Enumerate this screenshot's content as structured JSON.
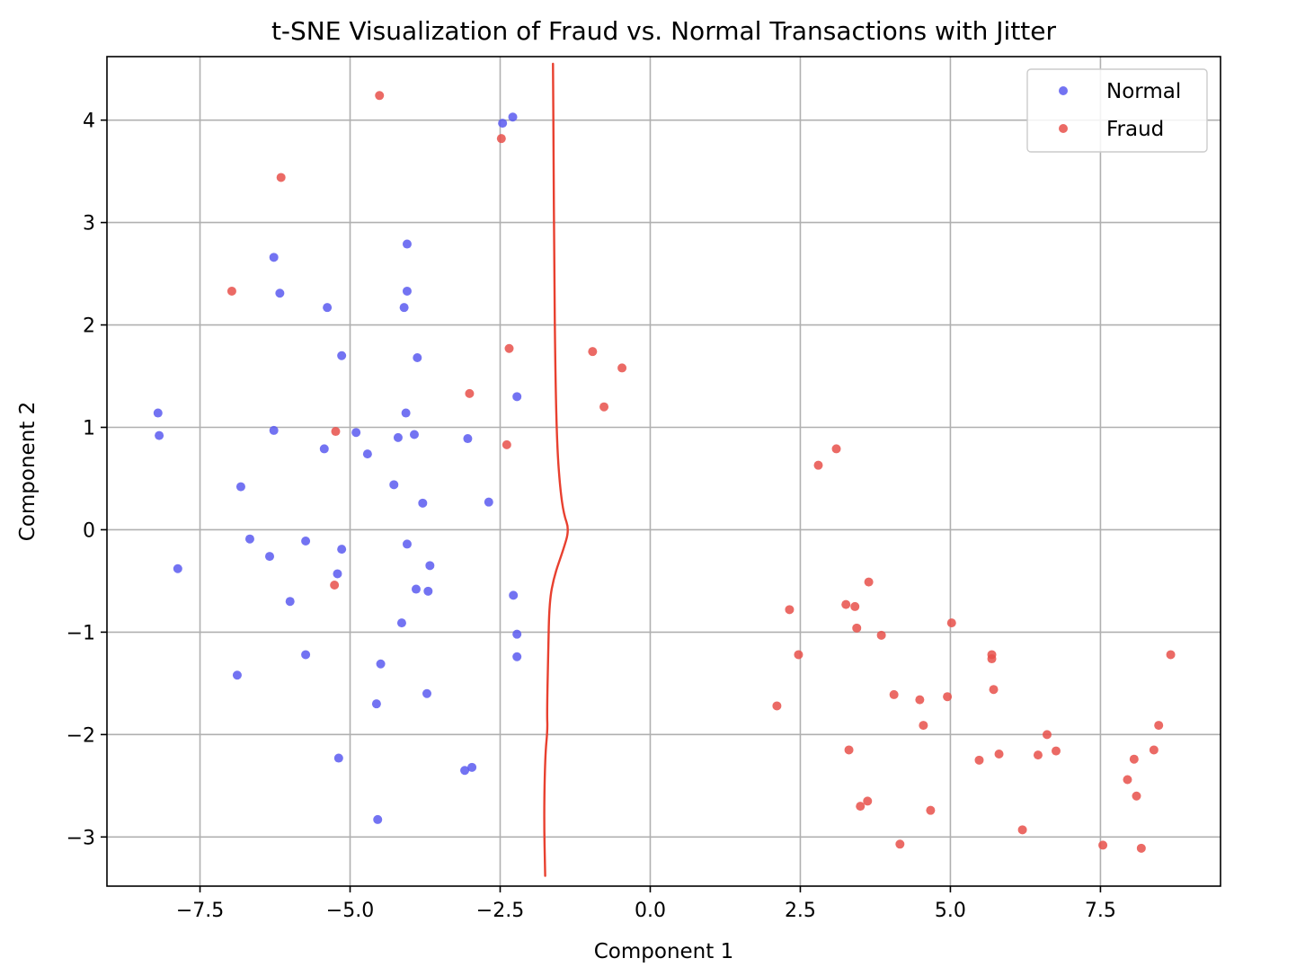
{
  "chart_data": {
    "type": "scatter",
    "title": "t-SNE Visualization of Fraud vs. Normal Transactions with Jitter",
    "xlabel": "Component 1",
    "ylabel": "Component 2",
    "xlim": [
      -9.05,
      9.5
    ],
    "ylim": [
      -3.48,
      4.62
    ],
    "xticks": [
      -7.5,
      -5.0,
      -2.5,
      0.0,
      2.5,
      5.0,
      7.5
    ],
    "xtick_labels": [
      "−7.5",
      "−5.0",
      "−2.5",
      "0.0",
      "2.5",
      "5.0",
      "7.5"
    ],
    "yticks": [
      -3,
      -2,
      -1,
      0,
      1,
      2,
      3,
      4
    ],
    "ytick_labels": [
      "−3",
      "−2",
      "−1",
      "0",
      "1",
      "2",
      "3",
      "4"
    ],
    "grid": true,
    "legend_position": "upper-right",
    "series": [
      {
        "name": "Normal",
        "color": "#5b5bf0",
        "points": [
          [
            -8.2,
            1.14
          ],
          [
            -8.18,
            0.92
          ],
          [
            -7.87,
            -0.38
          ],
          [
            -6.82,
            0.42
          ],
          [
            -6.88,
            -1.42
          ],
          [
            -6.67,
            -0.09
          ],
          [
            -6.27,
            2.66
          ],
          [
            -6.27,
            0.97
          ],
          [
            -6.17,
            2.31
          ],
          [
            -6.34,
            -0.26
          ],
          [
            -6.0,
            -0.7
          ],
          [
            -5.74,
            -0.11
          ],
          [
            -5.74,
            -1.22
          ],
          [
            -5.38,
            2.17
          ],
          [
            -5.43,
            0.79
          ],
          [
            -5.14,
            1.7
          ],
          [
            -4.9,
            0.95
          ],
          [
            -4.71,
            0.74
          ],
          [
            -5.14,
            -0.19
          ],
          [
            -5.21,
            -0.43
          ],
          [
            -5.19,
            -2.23
          ],
          [
            -4.56,
            -1.7
          ],
          [
            -4.49,
            -1.31
          ],
          [
            -4.54,
            -2.83
          ],
          [
            -4.27,
            0.44
          ],
          [
            -4.2,
            0.9
          ],
          [
            -4.1,
            2.17
          ],
          [
            -4.05,
            2.79
          ],
          [
            -4.05,
            2.33
          ],
          [
            -4.07,
            1.14
          ],
          [
            -4.05,
            -0.14
          ],
          [
            -3.93,
            0.93
          ],
          [
            -3.88,
            1.68
          ],
          [
            -3.79,
            0.26
          ],
          [
            -3.9,
            -0.58
          ],
          [
            -3.7,
            -0.6
          ],
          [
            -3.67,
            -0.35
          ],
          [
            -4.14,
            -0.91
          ],
          [
            -3.72,
            -1.6
          ],
          [
            -3.04,
            0.89
          ],
          [
            -2.69,
            0.27
          ],
          [
            -3.09,
            -2.35
          ],
          [
            -2.97,
            -2.32
          ],
          [
            -2.22,
            1.3
          ],
          [
            -2.28,
            -0.64
          ],
          [
            -2.22,
            -1.02
          ],
          [
            -2.22,
            -1.24
          ],
          [
            -2.46,
            3.97
          ],
          [
            -2.29,
            4.03
          ]
        ]
      },
      {
        "name": "Fraud",
        "color": "#e8504a",
        "points": [
          [
            -4.51,
            4.24
          ],
          [
            -6.15,
            3.44
          ],
          [
            -6.97,
            2.33
          ],
          [
            -5.24,
            0.96
          ],
          [
            -5.26,
            -0.54
          ],
          [
            -3.01,
            1.33
          ],
          [
            -2.39,
            0.83
          ],
          [
            -2.35,
            1.77
          ],
          [
            -2.48,
            3.82
          ],
          [
            -0.96,
            1.74
          ],
          [
            -0.77,
            1.2
          ],
          [
            -0.47,
            1.58
          ],
          [
            2.32,
            -0.78
          ],
          [
            2.47,
            -1.22
          ],
          [
            2.11,
            -1.72
          ],
          [
            2.8,
            0.63
          ],
          [
            3.1,
            0.79
          ],
          [
            3.26,
            -0.73
          ],
          [
            3.41,
            -0.75
          ],
          [
            3.44,
            -0.96
          ],
          [
            3.64,
            -0.51
          ],
          [
            3.85,
            -1.03
          ],
          [
            4.06,
            -1.61
          ],
          [
            4.49,
            -1.66
          ],
          [
            4.55,
            -1.91
          ],
          [
            4.95,
            -1.63
          ],
          [
            5.02,
            -0.91
          ],
          [
            3.31,
            -2.15
          ],
          [
            3.5,
            -2.7
          ],
          [
            3.62,
            -2.65
          ],
          [
            4.16,
            -3.07
          ],
          [
            4.67,
            -2.74
          ],
          [
            5.48,
            -2.25
          ],
          [
            5.69,
            -1.22
          ],
          [
            5.69,
            -1.26
          ],
          [
            5.72,
            -1.56
          ],
          [
            5.81,
            -2.19
          ],
          [
            6.2,
            -2.93
          ],
          [
            6.46,
            -2.2
          ],
          [
            6.61,
            -2.0
          ],
          [
            6.76,
            -2.16
          ],
          [
            7.54,
            -3.08
          ],
          [
            7.95,
            -2.44
          ],
          [
            8.06,
            -2.24
          ],
          [
            8.1,
            -2.6
          ],
          [
            8.18,
            -3.11
          ],
          [
            8.39,
            -2.15
          ],
          [
            8.47,
            -1.91
          ],
          [
            8.67,
            -1.22
          ]
        ]
      }
    ],
    "annotations": [
      {
        "type": "hand-drawn-curve",
        "color": "#e8402f",
        "points": [
          [
            -1.62,
            4.55
          ],
          [
            -1.61,
            3.7
          ],
          [
            -1.6,
            2.6
          ],
          [
            -1.58,
            1.5
          ],
          [
            -1.55,
            0.8
          ],
          [
            -1.5,
            0.4
          ],
          [
            -1.44,
            0.15
          ],
          [
            -1.35,
            0.0
          ],
          [
            -1.45,
            -0.2
          ],
          [
            -1.6,
            -0.45
          ],
          [
            -1.68,
            -0.7
          ],
          [
            -1.7,
            -1.2
          ],
          [
            -1.72,
            -1.8
          ],
          [
            -1.71,
            -1.95
          ],
          [
            -1.75,
            -2.2
          ],
          [
            -1.77,
            -2.8
          ],
          [
            -1.75,
            -3.38
          ]
        ]
      }
    ]
  }
}
